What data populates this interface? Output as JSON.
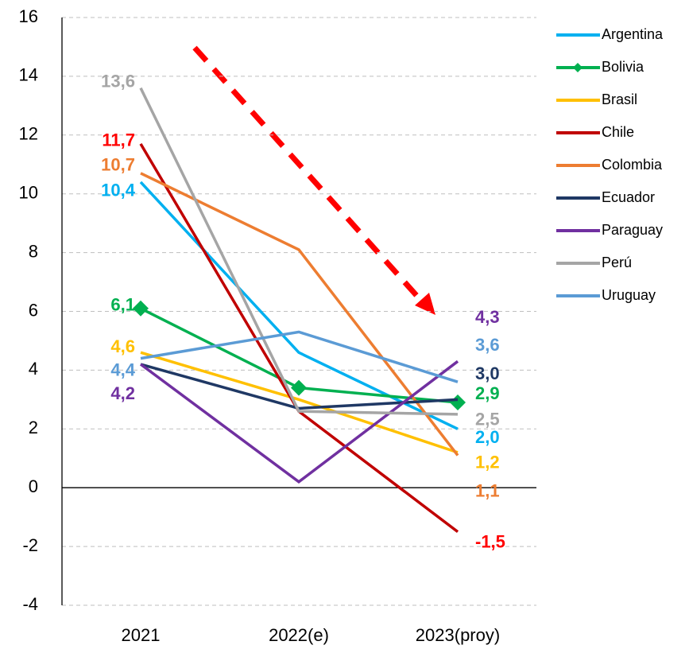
{
  "chart_data": {
    "type": "line",
    "categories": [
      "2021",
      "2022(e)",
      "2023(proy)"
    ],
    "ylim": [
      -4,
      16
    ],
    "yticks": [
      -4,
      -2,
      0,
      2,
      4,
      6,
      8,
      10,
      12,
      14,
      16
    ],
    "grid": true,
    "legend": "right",
    "series": [
      {
        "name": "Argentina",
        "color": "#00b0f0",
        "values": [
          10.4,
          4.6,
          2.0
        ],
        "value_labels": [
          "10,4",
          null,
          "2,0"
        ]
      },
      {
        "name": "Bolivia",
        "color": "#00b050",
        "marker": "diamond",
        "values": [
          6.1,
          3.4,
          2.9
        ],
        "value_labels": [
          "6,1",
          null,
          "2,9"
        ]
      },
      {
        "name": "Brasil",
        "color": "#ffc000",
        "values": [
          4.6,
          3.0,
          1.2
        ],
        "value_labels": [
          "4,6",
          null,
          "1,2"
        ]
      },
      {
        "name": "Chile",
        "color": "#c00000",
        "label_color": "#ff0000",
        "values": [
          11.7,
          2.6,
          -1.5
        ],
        "value_labels": [
          "11,7",
          null,
          "-1,5"
        ]
      },
      {
        "name": "Colombia",
        "color": "#ed7d31",
        "values": [
          10.7,
          8.1,
          1.1
        ],
        "value_labels": [
          "10,7",
          null,
          "1,1"
        ]
      },
      {
        "name": "Ecuador",
        "color": "#1f3864",
        "values": [
          4.2,
          2.7,
          3.0
        ],
        "value_labels": [
          null,
          null,
          "3,0"
        ]
      },
      {
        "name": "Paraguay",
        "color": "#7030a0",
        "values": [
          4.2,
          0.2,
          4.3
        ],
        "value_labels": [
          "4,2",
          null,
          "4,3"
        ]
      },
      {
        "name": "Perú",
        "color": "#a5a5a5",
        "values": [
          13.6,
          2.6,
          2.5
        ],
        "value_labels": [
          "13,6",
          null,
          "2,5"
        ]
      },
      {
        "name": "Uruguay",
        "color": "#5b9bd5",
        "values": [
          4.4,
          5.3,
          3.6
        ],
        "value_labels": [
          "4,4",
          null,
          "3,6"
        ]
      }
    ]
  }
}
